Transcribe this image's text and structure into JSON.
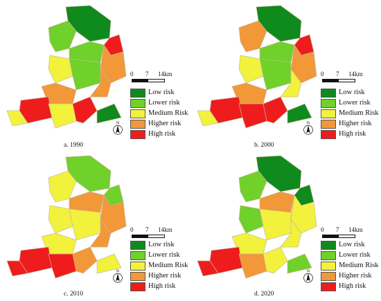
{
  "legend": {
    "items": [
      {
        "label": "Low risk",
        "color": "#0f8a1c"
      },
      {
        "label": "Lower risk",
        "color": "#6fd12a"
      },
      {
        "label": "Medium Risk",
        "color": "#f2f23c"
      },
      {
        "label": "Higher risk",
        "color": "#f29838"
      },
      {
        "label": "High risk",
        "color": "#ee1c1c"
      }
    ]
  },
  "scale": {
    "ticks": [
      "0",
      "7",
      "14km"
    ]
  },
  "north_label": "N",
  "panels": [
    {
      "caption": "a. 1990"
    },
    {
      "caption": "b. 2000"
    },
    {
      "caption": "c. 2010"
    },
    {
      "caption": "d. 2020"
    }
  ]
}
